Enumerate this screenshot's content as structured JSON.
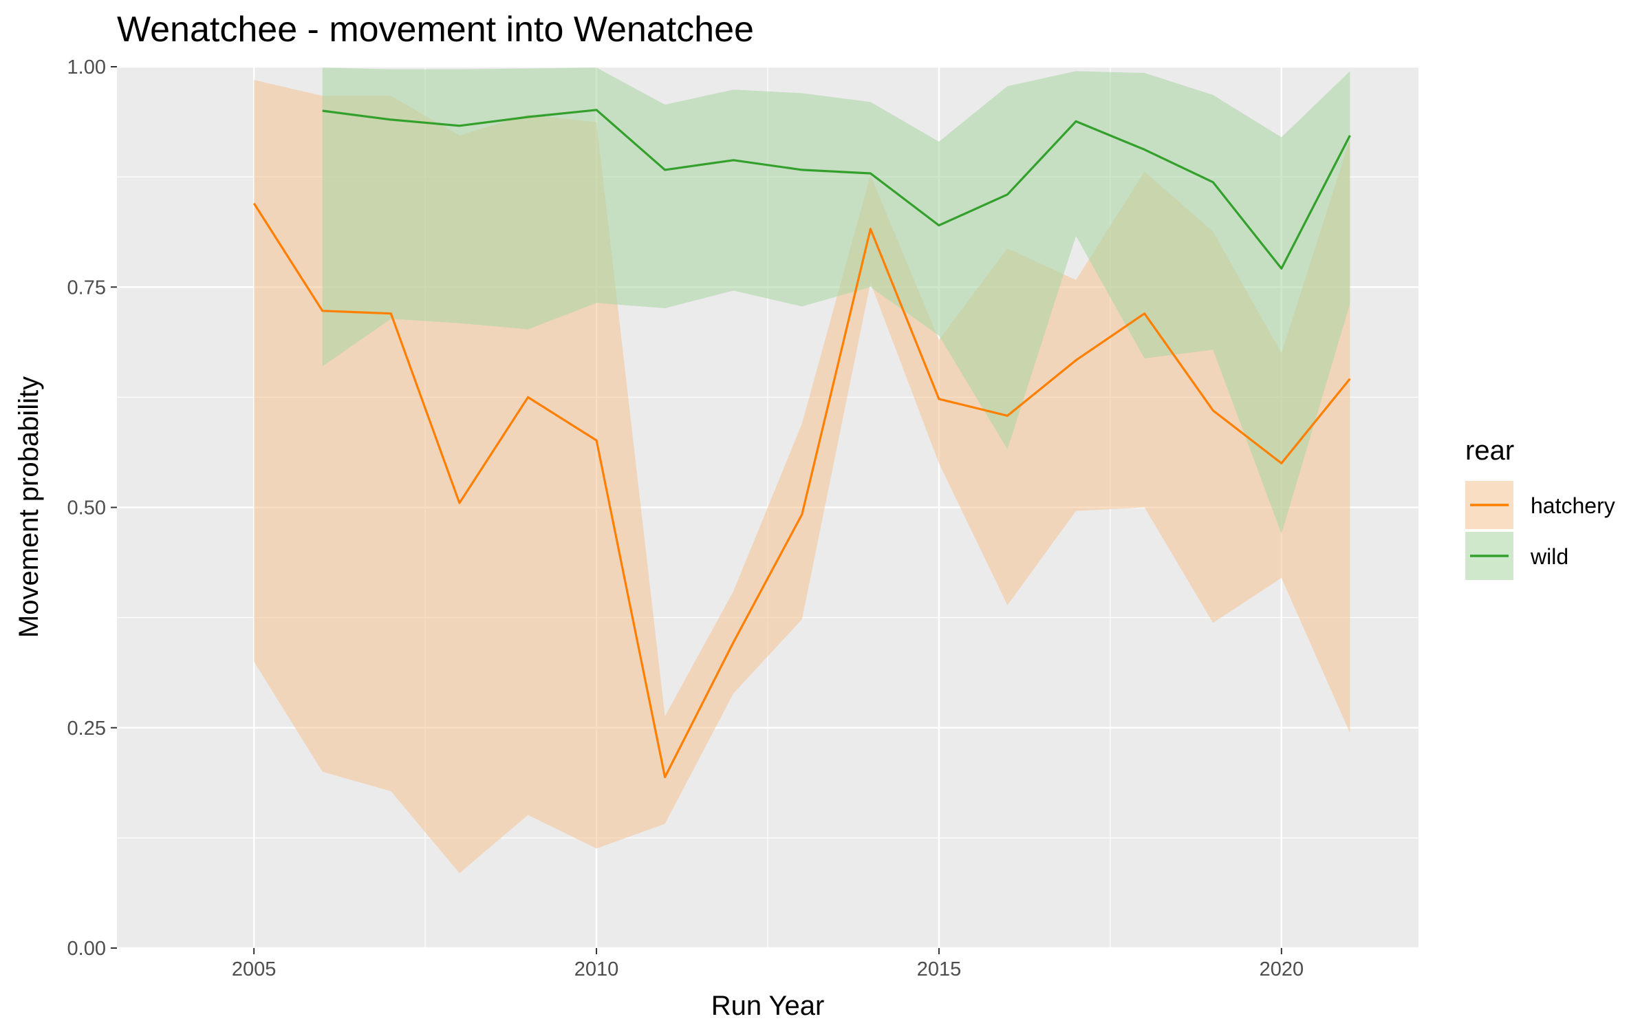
{
  "chart_data": {
    "type": "line",
    "title": "Wenatchee - movement into Wenatchee",
    "xlabel": "Run Year",
    "ylabel": "Movement probability",
    "xlim": [
      2003.0,
      2022.0
    ],
    "ylim": [
      0,
      1
    ],
    "x_ticks": [
      2005,
      2010,
      2015,
      2020
    ],
    "y_ticks": [
      0.0,
      0.25,
      0.5,
      0.75,
      1.0
    ],
    "x_tick_labels": [
      "2005",
      "2010",
      "2015",
      "2020"
    ],
    "y_tick_labels": [
      "0.00",
      "0.25",
      "0.50",
      "0.75",
      "1.00"
    ],
    "grid": true,
    "legend": {
      "title": "rear",
      "position": "right"
    },
    "series": [
      {
        "name": "hatchery",
        "color": "#ff7f00",
        "band_color": "#f4c393",
        "x": [
          2005,
          2006,
          2007,
          2008,
          2009,
          2010,
          2011,
          2012,
          2013,
          2014,
          2015,
          2016,
          2017,
          2018,
          2019,
          2020,
          2021
        ],
        "values": [
          0.845,
          0.723,
          0.72,
          0.505,
          0.625,
          0.576,
          0.194,
          0.347,
          0.492,
          0.816,
          0.623,
          0.604,
          0.667,
          0.72,
          0.61,
          0.55,
          0.646
        ],
        "lower": [
          0.325,
          0.2,
          0.178,
          0.085,
          0.151,
          0.113,
          0.141,
          0.289,
          0.373,
          0.755,
          0.55,
          0.389,
          0.496,
          0.5,
          0.369,
          0.42,
          0.244
        ],
        "upper": [
          0.985,
          0.967,
          0.967,
          0.922,
          0.946,
          0.937,
          0.263,
          0.405,
          0.595,
          0.877,
          0.69,
          0.794,
          0.758,
          0.881,
          0.813,
          0.675,
          0.918
        ]
      },
      {
        "name": "wild",
        "color": "#33a02c",
        "band_color": "#a8d5a2",
        "x": [
          2006,
          2007,
          2008,
          2009,
          2010,
          2011,
          2012,
          2013,
          2014,
          2015,
          2016,
          2017,
          2018,
          2019,
          2020,
          2021
        ],
        "values": [
          0.95,
          0.94,
          0.933,
          0.943,
          0.951,
          0.883,
          0.894,
          0.883,
          0.879,
          0.82,
          0.855,
          0.938,
          0.906,
          0.869,
          0.771,
          0.922
        ],
        "lower": [
          0.66,
          0.714,
          0.709,
          0.702,
          0.732,
          0.726,
          0.746,
          0.728,
          0.75,
          0.695,
          0.566,
          0.808,
          0.669,
          0.679,
          0.47,
          0.731
        ],
        "upper": [
          0.999,
          0.997,
          0.997,
          0.998,
          0.999,
          0.957,
          0.974,
          0.97,
          0.96,
          0.915,
          0.978,
          0.995,
          0.993,
          0.968,
          0.92,
          0.995
        ]
      }
    ]
  }
}
